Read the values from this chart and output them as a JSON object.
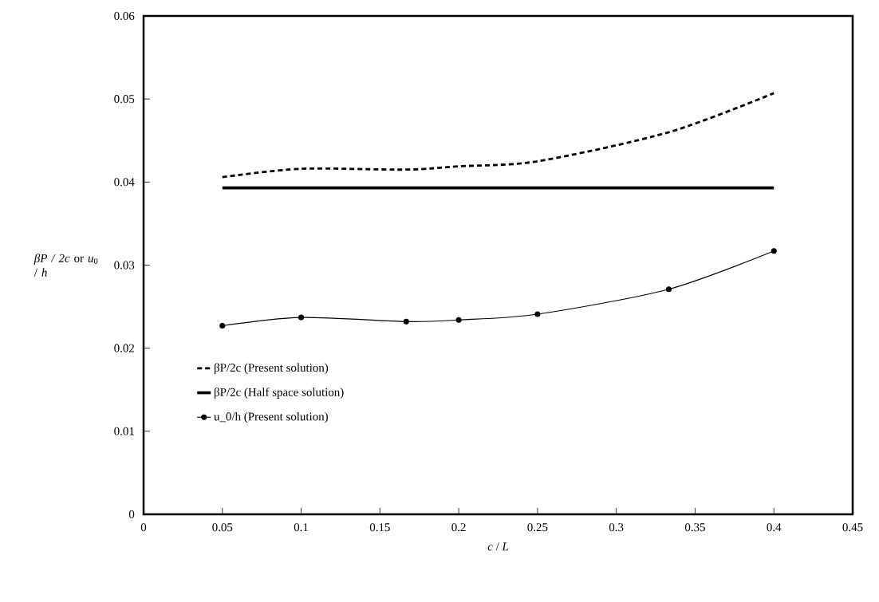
{
  "chart_data": {
    "type": "line",
    "xlabel": "*c* / *L*",
    "ylabel": "*βP / 2c* or *u*$_{0}$ / *h*",
    "xlim": [
      0,
      0.45
    ],
    "xticks": [
      0,
      0.05,
      0.1,
      0.15,
      0.2,
      0.25,
      0.3,
      0.35,
      0.4,
      0.45
    ],
    "ylim": [
      0,
      0.06
    ],
    "yticks": [
      0,
      0.01,
      0.02,
      0.03,
      0.04,
      0.05,
      0.06
    ],
    "x": [
      0.05,
      0.1,
      0.1667,
      0.2,
      0.25,
      0.3333,
      0.4
    ],
    "series": [
      {
        "name": "βP/2c (Present solution)",
        "color": "#000000",
        "line_style": "dashed",
        "marker": "none",
        "values": [
          0.0406,
          0.0416,
          0.0415,
          0.0419,
          0.0425,
          0.046,
          0.0507
        ]
      },
      {
        "name": "βP/2c (Half space solution)",
        "color": "#000000",
        "line_style": "solid",
        "marker": "none",
        "x": [
          0.05,
          0.4
        ],
        "values": [
          0.0393,
          0.0393
        ]
      },
      {
        "name": "u_0/h (Present solution)",
        "color": "#000000",
        "line_style": "solid",
        "marker": "circle",
        "values": [
          0.0227,
          0.0237,
          0.0232,
          0.0234,
          0.0241,
          0.0271,
          0.0317
        ]
      }
    ],
    "legend": "bottom left",
    "grid": false
  }
}
